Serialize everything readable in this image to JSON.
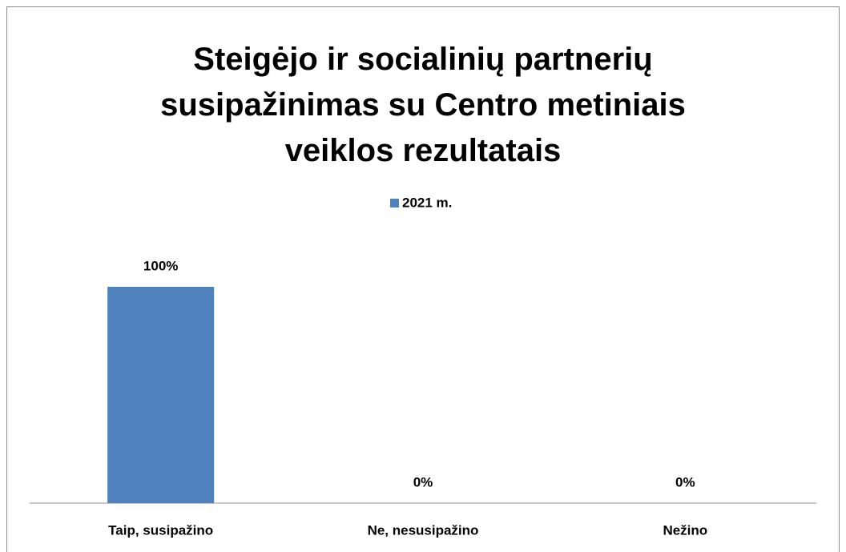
{
  "chart_data": {
    "type": "bar",
    "title": "Steigėjo ir socialinių partnerių susipažinimas su Centro metiniais veiklos rezultatais",
    "categories": [
      "Taip, susipažino",
      "Ne, nesusipažino",
      "Nežino"
    ],
    "series": [
      {
        "name": "2021 m.",
        "color": "#4f81bd",
        "values": [
          100,
          0,
          0
        ],
        "value_labels": [
          "100%",
          "0%",
          "0%"
        ]
      }
    ],
    "legend": "top"
  }
}
